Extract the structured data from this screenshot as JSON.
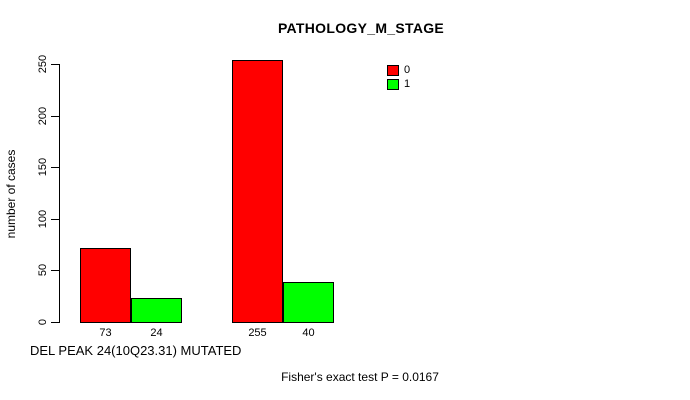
{
  "chart_data": {
    "type": "bar",
    "title": "PATHOLOGY_M_STAGE",
    "ylabel": "number of cases",
    "xlabel": "DEL PEAK 24(10Q23.31) MUTATED",
    "footnote": "Fisher's exact test P = 0.0167",
    "series": [
      {
        "name": "0",
        "color": "#FF0000",
        "values": [
          73,
          255
        ]
      },
      {
        "name": "1",
        "color": "#00FF00",
        "values": [
          24,
          40
        ]
      }
    ],
    "bar_labels": [
      "73",
      "24",
      "255",
      "40"
    ],
    "yticks": [
      0,
      50,
      100,
      150,
      200,
      250
    ],
    "ylim": [
      0,
      255
    ],
    "grid": false,
    "legend": {
      "position": "top-right",
      "entries": [
        {
          "label": "0",
          "color": "#FF0000"
        },
        {
          "label": "1",
          "color": "#00FF00"
        }
      ]
    },
    "colors": {
      "background": "#FFFFFF",
      "axis": "#000000",
      "text": "#000000",
      "bar_border": "#000000"
    }
  }
}
